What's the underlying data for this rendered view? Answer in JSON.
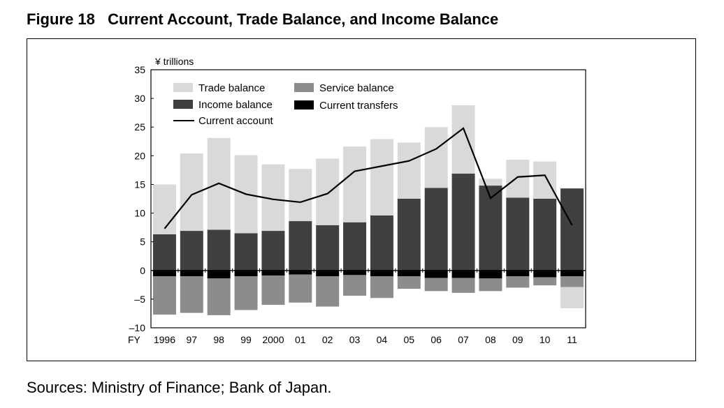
{
  "figure": {
    "title": "Figure 18   Current Account, Trade Balance, and Income Balance",
    "sources": "Sources: Ministry of Finance; Bank of Japan."
  },
  "chart_data": {
    "type": "bar",
    "stacked": true,
    "ylabel": "¥ trillions",
    "xlabel_prefix": "FY",
    "ylim": [
      -10,
      35
    ],
    "yticks": [
      35,
      30,
      25,
      20,
      15,
      10,
      5,
      0,
      -5,
      -10
    ],
    "ytick_labels": [
      "35",
      "30",
      "25",
      "20",
      "15",
      "10",
      "5",
      "0",
      "–5",
      "–10"
    ],
    "categories": [
      "1996",
      "97",
      "98",
      "99",
      "2000",
      "01",
      "02",
      "03",
      "04",
      "05",
      "06",
      "07",
      "08",
      "09",
      "10",
      "11"
    ],
    "series": [
      {
        "name": "Trade balance",
        "color": "#d9d9d9",
        "values": [
          8.7,
          13.5,
          16.0,
          13.6,
          11.6,
          9.1,
          11.6,
          13.2,
          13.3,
          9.8,
          10.6,
          11.9,
          1.2,
          6.6,
          6.5,
          -3.7
        ]
      },
      {
        "name": "Service balance",
        "color": "#8c8c8c",
        "values": [
          -6.7,
          -6.4,
          -6.4,
          -5.9,
          -5.1,
          -4.9,
          -5.3,
          -3.6,
          -3.8,
          -2.2,
          -2.3,
          -2.6,
          -2.2,
          -2.0,
          -1.4,
          -1.9
        ]
      },
      {
        "name": "Income balance",
        "color": "#404040",
        "values": [
          6.3,
          6.9,
          7.1,
          6.5,
          6.9,
          8.6,
          7.9,
          8.4,
          9.6,
          12.5,
          14.4,
          16.9,
          14.8,
          12.7,
          12.5,
          14.3
        ]
      },
      {
        "name": "Current transfers",
        "color": "#000000",
        "values": [
          -1.0,
          -1.0,
          -1.4,
          -1.0,
          -0.9,
          -0.7,
          -1.0,
          -0.8,
          -1.0,
          -1.0,
          -1.3,
          -1.3,
          -1.4,
          -1.0,
          -1.2,
          -1.0
        ]
      },
      {
        "name": "Current account",
        "type": "line",
        "color": "#000000",
        "values": [
          7.3,
          13.2,
          15.2,
          13.3,
          12.4,
          11.9,
          13.4,
          17.3,
          18.2,
          19.1,
          21.2,
          24.8,
          12.6,
          16.3,
          16.6,
          7.9
        ]
      }
    ],
    "legend_placement": "top-left",
    "grid": false
  }
}
